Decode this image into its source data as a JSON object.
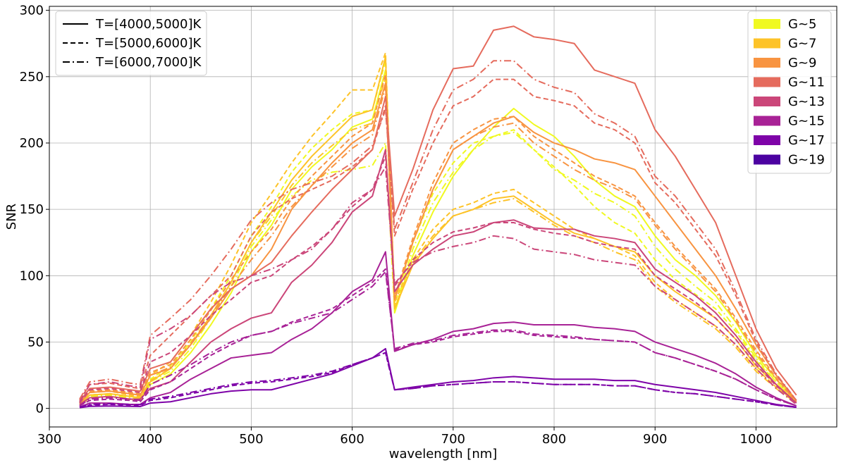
{
  "chart_data": {
    "type": "line",
    "title": "",
    "xlabel": "wavelength [nm]",
    "ylabel": "SNR",
    "xlim": [
      300,
      1080
    ],
    "ylim": [
      -14,
      303
    ],
    "x_ticks": [
      300,
      400,
      500,
      600,
      700,
      800,
      900,
      1000
    ],
    "y_ticks": [
      0,
      50,
      100,
      150,
      200,
      250,
      300
    ],
    "grid": true,
    "style_legend": {
      "placement": "top-left",
      "entries": [
        {
          "label": "T=[4000,5000]K",
          "dash": "solid"
        },
        {
          "label": "T=[5000,6000]K",
          "dash": "dashed"
        },
        {
          "label": "T=[6000,7000]K",
          "dash": "dashdot"
        }
      ]
    },
    "color_legend": {
      "placement": "top-right",
      "entries": [
        {
          "label": "G~5",
          "color": "#f0f921"
        },
        {
          "label": "G~7",
          "color": "#fdc328"
        },
        {
          "label": "G~9",
          "color": "#f89441"
        },
        {
          "label": "G~11",
          "color": "#e56b5d"
        },
        {
          "label": "G~13",
          "color": "#cb4679"
        },
        {
          "label": "G~15",
          "color": "#a82296"
        },
        {
          "label": "G~17",
          "color": "#7e03a8"
        },
        {
          "label": "G~19",
          "color": "#4c02a1"
        }
      ]
    },
    "knots_x": [
      330,
      340,
      360,
      380,
      390,
      400,
      420,
      440,
      460,
      480,
      500,
      520,
      540,
      560,
      580,
      600,
      620,
      633,
      642,
      660,
      680,
      700,
      720,
      740,
      760,
      780,
      800,
      820,
      840,
      860,
      880,
      900,
      920,
      940,
      960,
      980,
      1000,
      1020,
      1040
    ],
    "series": [
      {
        "group": "G~5",
        "dash": "solid",
        "color": "#f0f921",
        "values": [
          2,
          8,
          9,
          7,
          6,
          18,
          26,
          42,
          63,
          87,
          118,
          138,
          165,
          182,
          195,
          212,
          218,
          255,
          72,
          115,
          148,
          175,
          195,
          212,
          226,
          214,
          205,
          190,
          172,
          160,
          152,
          130,
          112,
          100,
          85,
          65,
          40,
          22,
          6
        ]
      },
      {
        "group": "G~5",
        "dash": "dashed",
        "color": "#f0f921",
        "values": [
          3,
          10,
          11,
          9,
          8,
          22,
          32,
          50,
          75,
          100,
          130,
          152,
          178,
          196,
          210,
          222,
          225,
          262,
          78,
          125,
          162,
          185,
          200,
          205,
          210,
          195,
          182,
          168,
          152,
          140,
          132,
          112,
          97,
          86,
          75,
          58,
          36,
          20,
          5
        ]
      },
      {
        "group": "G~5",
        "dash": "dashdot",
        "color": "#f0f921",
        "values": [
          3,
          9,
          10,
          8,
          7,
          20,
          28,
          45,
          68,
          92,
          122,
          142,
          160,
          172,
          178,
          180,
          183,
          200,
          74,
          120,
          155,
          178,
          195,
          205,
          208,
          195,
          180,
          172,
          162,
          155,
          145,
          122,
          105,
          92,
          80,
          60,
          38,
          20,
          5
        ]
      },
      {
        "group": "G~7",
        "dash": "solid",
        "color": "#fdc328",
        "values": [
          3,
          10,
          11,
          9,
          8,
          20,
          30,
          48,
          70,
          95,
          125,
          148,
          172,
          190,
          205,
          220,
          225,
          265,
          75,
          108,
          128,
          145,
          150,
          158,
          160,
          150,
          140,
          132,
          128,
          122,
          118,
          100,
          88,
          78,
          68,
          52,
          32,
          18,
          5
        ]
      },
      {
        "group": "G~7",
        "dash": "dashed",
        "color": "#fdc328",
        "values": [
          4,
          12,
          13,
          10,
          9,
          25,
          35,
          55,
          80,
          108,
          140,
          162,
          185,
          205,
          222,
          240,
          240,
          268,
          80,
          112,
          135,
          150,
          155,
          162,
          165,
          155,
          145,
          135,
          128,
          122,
          115,
          95,
          82,
          72,
          62,
          48,
          30,
          16,
          4
        ]
      },
      {
        "group": "G~7",
        "dash": "dashdot",
        "color": "#fdc328",
        "values": [
          3,
          10,
          11,
          9,
          8,
          21,
          30,
          48,
          70,
          95,
          125,
          145,
          168,
          185,
          198,
          210,
          215,
          250,
          76,
          110,
          130,
          145,
          150,
          155,
          158,
          148,
          138,
          130,
          125,
          118,
          112,
          92,
          80,
          70,
          60,
          46,
          28,
          15,
          4
        ]
      },
      {
        "group": "G~9",
        "dash": "solid",
        "color": "#f89441",
        "values": [
          4,
          12,
          13,
          11,
          10,
          25,
          30,
          48,
          68,
          90,
          100,
          120,
          150,
          168,
          185,
          200,
          210,
          245,
          82,
          125,
          165,
          195,
          205,
          215,
          220,
          208,
          200,
          195,
          188,
          185,
          180,
          160,
          140,
          120,
          100,
          75,
          48,
          25,
          6
        ]
      },
      {
        "group": "G~9",
        "dash": "dashed",
        "color": "#f89441",
        "values": [
          4,
          13,
          14,
          12,
          11,
          27,
          33,
          52,
          74,
          97,
          118,
          135,
          158,
          175,
          190,
          205,
          215,
          252,
          84,
          128,
          170,
          200,
          210,
          218,
          220,
          205,
          195,
          185,
          175,
          168,
          160,
          140,
          122,
          106,
          90,
          68,
          44,
          23,
          5
        ]
      },
      {
        "group": "G~9",
        "dash": "dashdot",
        "color": "#f89441",
        "values": [
          4,
          12,
          13,
          11,
          10,
          25,
          31,
          49,
          70,
          92,
          112,
          130,
          152,
          168,
          182,
          196,
          206,
          242,
          82,
          125,
          165,
          195,
          205,
          212,
          215,
          200,
          190,
          180,
          172,
          166,
          158,
          138,
          120,
          104,
          88,
          66,
          42,
          22,
          5
        ]
      },
      {
        "group": "G~11",
        "dash": "solid",
        "color": "#e56b5d",
        "values": [
          5,
          15,
          16,
          14,
          13,
          30,
          35,
          55,
          75,
          90,
          100,
          110,
          130,
          148,
          165,
          180,
          195,
          235,
          145,
          180,
          225,
          256,
          258,
          285,
          288,
          280,
          278,
          275,
          255,
          250,
          245,
          210,
          190,
          165,
          140,
          100,
          60,
          30,
          10
        ]
      },
      {
        "group": "G~11",
        "dash": "dashed",
        "color": "#e56b5d",
        "values": [
          6,
          18,
          19,
          16,
          15,
          40,
          55,
          70,
          85,
          100,
          130,
          148,
          158,
          165,
          172,
          182,
          195,
          228,
          130,
          165,
          200,
          228,
          235,
          248,
          248,
          235,
          232,
          228,
          215,
          210,
          200,
          170,
          155,
          135,
          115,
          85,
          50,
          25,
          6
        ]
      },
      {
        "group": "G~11",
        "dash": "dashdot",
        "color": "#e56b5d",
        "values": [
          7,
          20,
          22,
          19,
          18,
          55,
          68,
          82,
          100,
          120,
          142,
          155,
          165,
          170,
          175,
          185,
          198,
          225,
          135,
          170,
          210,
          240,
          248,
          262,
          262,
          248,
          242,
          238,
          222,
          215,
          205,
          175,
          160,
          140,
          120,
          88,
          52,
          26,
          6
        ]
      },
      {
        "group": "G~13",
        "dash": "solid",
        "color": "#cb4679",
        "values": [
          3,
          8,
          9,
          7,
          7,
          15,
          20,
          35,
          50,
          60,
          68,
          72,
          95,
          108,
          125,
          148,
          160,
          195,
          88,
          108,
          120,
          130,
          133,
          140,
          142,
          136,
          135,
          135,
          130,
          128,
          125,
          105,
          95,
          85,
          72,
          55,
          35,
          18,
          4
        ]
      },
      {
        "group": "G~13",
        "dash": "dashed",
        "color": "#cb4679",
        "values": [
          4,
          14,
          15,
          13,
          12,
          35,
          42,
          55,
          70,
          82,
          95,
          100,
          112,
          122,
          135,
          152,
          165,
          190,
          92,
          112,
          125,
          133,
          136,
          140,
          140,
          135,
          132,
          130,
          125,
          122,
          120,
          100,
          90,
          80,
          68,
          52,
          33,
          17,
          4
        ]
      },
      {
        "group": "G~13",
        "dash": "dashdot",
        "color": "#cb4679",
        "values": [
          5,
          18,
          20,
          17,
          16,
          52,
          60,
          70,
          85,
          95,
          100,
          105,
          112,
          120,
          135,
          155,
          165,
          182,
          94,
          110,
          118,
          122,
          125,
          130,
          128,
          120,
          118,
          116,
          112,
          110,
          108,
          92,
          82,
          72,
          62,
          48,
          30,
          15,
          3
        ]
      },
      {
        "group": "G~15",
        "dash": "solid",
        "color": "#a82296",
        "values": [
          1,
          4,
          4,
          3,
          3,
          8,
          12,
          22,
          30,
          38,
          40,
          42,
          52,
          60,
          72,
          88,
          97,
          118,
          43,
          48,
          52,
          58,
          60,
          64,
          65,
          63,
          63,
          63,
          61,
          60,
          58,
          50,
          45,
          40,
          34,
          26,
          16,
          8,
          2
        ]
      },
      {
        "group": "G~15",
        "dash": "dashed",
        "color": "#a82296",
        "values": [
          2,
          6,
          7,
          6,
          5,
          14,
          20,
          30,
          40,
          48,
          55,
          58,
          65,
          70,
          75,
          85,
          95,
          105,
          44,
          48,
          50,
          54,
          56,
          58,
          58,
          55,
          54,
          53,
          52,
          51,
          50,
          42,
          38,
          33,
          28,
          22,
          14,
          7,
          2
        ]
      },
      {
        "group": "G~15",
        "dash": "dashdot",
        "color": "#a82296",
        "values": [
          2,
          7,
          8,
          7,
          6,
          18,
          25,
          33,
          42,
          50,
          55,
          58,
          64,
          68,
          72,
          82,
          92,
          103,
          45,
          49,
          51,
          55,
          57,
          59,
          59,
          56,
          55,
          54,
          52,
          51,
          50,
          42,
          38,
          33,
          28,
          22,
          14,
          7,
          2
        ]
      },
      {
        "group": "G~17",
        "dash": "solid",
        "color": "#7e03a8",
        "values": [
          0.5,
          1.5,
          1.8,
          1.5,
          1.4,
          4,
          5,
          8,
          11,
          13,
          14,
          14,
          18,
          22,
          26,
          32,
          38,
          45,
          14,
          16,
          18,
          20,
          21,
          23,
          24,
          23,
          22,
          22,
          22,
          21,
          21,
          18,
          16,
          14,
          12,
          9,
          6,
          3,
          1
        ]
      },
      {
        "group": "G~17",
        "dash": "dashed",
        "color": "#7e03a8",
        "values": [
          1,
          2.5,
          3,
          2.5,
          2.3,
          6,
          8,
          11,
          14,
          17,
          19,
          20,
          22,
          24,
          27,
          33,
          38,
          42,
          14,
          15,
          17,
          18,
          19,
          20,
          20,
          19,
          18,
          18,
          18,
          17,
          17,
          14,
          12,
          11,
          9,
          7,
          5,
          2.5,
          0.8
        ]
      },
      {
        "group": "G~17",
        "dash": "dashdot",
        "color": "#7e03a8",
        "values": [
          1,
          3,
          3.5,
          3,
          2.8,
          7,
          9,
          12,
          15,
          18,
          20,
          21,
          23,
          25,
          28,
          33,
          38,
          42,
          14,
          15,
          17,
          18,
          19,
          20,
          20,
          19,
          18,
          18,
          18,
          17,
          17,
          14,
          12,
          11,
          9,
          7,
          5,
          2.5,
          0.8
        ]
      }
    ]
  }
}
